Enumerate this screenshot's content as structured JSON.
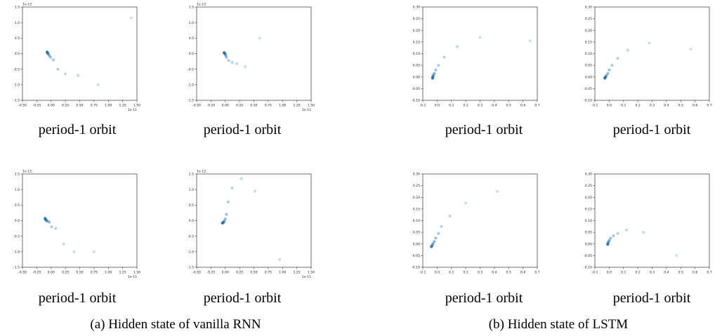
{
  "captions": {
    "a": "(a) Hidden state of vanilla RNN",
    "b": "(b) Hidden state of LSTM"
  },
  "chart_data": [
    {
      "type": "scatter",
      "group": "a",
      "caption": "period-1 orbit",
      "xlim": [
        -0.5,
        1.5
      ],
      "ylim": [
        -1.5,
        1.5
      ],
      "xticks": [
        "-0.50",
        "-0.25",
        "0.00",
        "0.25",
        "0.50",
        "0.75",
        "1.00",
        "1.25",
        "1.50"
      ],
      "yticks": [
        "-1.5",
        "-1.0",
        "-0.5",
        "0.0",
        "0.5",
        "1.0",
        "1.5"
      ],
      "xoffset": "1e-11",
      "yoffset": "1e-12",
      "x": [
        1.4,
        0.82,
        0.47,
        0.25,
        0.12,
        0.04,
        -0.01,
        -0.03,
        -0.05,
        -0.06,
        -0.065,
        -0.07
      ],
      "y": [
        1.15,
        -1.0,
        -0.7,
        -0.65,
        -0.5,
        -0.2,
        -0.12,
        -0.06,
        -0.01,
        0.02,
        0.04,
        0.05
      ]
    },
    {
      "type": "scatter",
      "group": "a",
      "caption": "period-1 orbit",
      "xlim": [
        -0.5,
        1.5
      ],
      "ylim": [
        -1.5,
        1.5
      ],
      "xticks": [
        "-0.50",
        "-0.25",
        "0.00",
        "0.25",
        "0.50",
        "0.75",
        "1.00",
        "1.25",
        "1.50"
      ],
      "yticks": [
        "-1.5",
        "-1.0",
        "-0.5",
        "0.0",
        "0.5",
        "1.0",
        "1.5"
      ],
      "xoffset": "1e-11",
      "yoffset": "1e-12",
      "x": [
        0.6,
        0.35,
        0.2,
        0.12,
        0.06,
        0.02,
        0.01,
        0.0,
        -0.01,
        -0.015,
        -0.02
      ],
      "y": [
        0.5,
        -0.42,
        -0.32,
        -0.28,
        -0.22,
        -0.12,
        -0.06,
        -0.02,
        0.01,
        0.02,
        0.03
      ]
    },
    {
      "type": "scatter",
      "group": "b",
      "caption": "period-1 orbit",
      "xlim": [
        -0.1,
        0.7
      ],
      "ylim": [
        -0.1,
        0.3
      ],
      "xticks": [
        "-0.1",
        "0.0",
        "0.1",
        "0.2",
        "0.3",
        "0.4",
        "0.5",
        "0.6",
        "0.7"
      ],
      "yticks": [
        "-0.10",
        "-0.05",
        "0.00",
        "0.05",
        "0.10",
        "0.15",
        "0.20",
        "0.25",
        "0.30"
      ],
      "xoffset": "",
      "yoffset": "",
      "x": [
        0.65,
        0.3,
        0.14,
        0.05,
        0.01,
        -0.01,
        -0.02,
        -0.025,
        -0.03,
        -0.03,
        -0.032
      ],
      "y": [
        0.155,
        0.17,
        0.13,
        0.085,
        0.05,
        0.03,
        0.015,
        0.008,
        0.002,
        -0.002,
        -0.005
      ]
    },
    {
      "type": "scatter",
      "group": "b",
      "caption": "period-1 orbit",
      "xlim": [
        -0.1,
        0.7
      ],
      "ylim": [
        -0.1,
        0.3
      ],
      "xticks": [
        "-0.1",
        "0.0",
        "0.1",
        "0.2",
        "0.3",
        "0.4",
        "0.5",
        "0.6",
        "0.7"
      ],
      "yticks": [
        "-0.10",
        "-0.05",
        "0.00",
        "0.05",
        "0.10",
        "0.15",
        "0.20",
        "0.25",
        "0.30"
      ],
      "xoffset": "",
      "yoffset": "",
      "x": [
        0.57,
        0.28,
        0.13,
        0.06,
        0.02,
        0.0,
        -0.01,
        -0.02,
        -0.025,
        -0.03,
        -0.03
      ],
      "y": [
        0.12,
        0.145,
        0.115,
        0.08,
        0.05,
        0.03,
        0.015,
        0.006,
        0.0,
        -0.003,
        -0.005
      ]
    },
    {
      "type": "scatter",
      "group": "a",
      "caption": "period-1 orbit",
      "xlim": [
        -0.5,
        1.5
      ],
      "ylim": [
        -1.5,
        1.5
      ],
      "xticks": [
        "-0.50",
        "-0.25",
        "0.00",
        "0.25",
        "0.50",
        "0.75",
        "1.00",
        "1.25",
        "1.50"
      ],
      "yticks": [
        "-1.5",
        "-1.0",
        "-0.5",
        "0.0",
        "0.5",
        "1.0",
        "1.5"
      ],
      "xoffset": "1e-11",
      "yoffset": "1e-12",
      "x": [
        0.75,
        0.4,
        0.22,
        0.08,
        0.01,
        -0.03,
        -0.06,
        -0.08,
        -0.09,
        -0.1,
        -0.105
      ],
      "y": [
        -1.0,
        -1.0,
        -0.75,
        -0.25,
        -0.2,
        -0.05,
        -0.02,
        0.0,
        0.02,
        0.05,
        0.07
      ]
    },
    {
      "type": "scatter",
      "group": "a",
      "caption": "period-1 orbit",
      "xlim": [
        -0.5,
        1.5
      ],
      "ylim": [
        -1.5,
        1.5
      ],
      "xticks": [
        "-0.50",
        "-0.25",
        "0.00",
        "0.25",
        "0.50",
        "0.75",
        "1.00",
        "1.25",
        "1.50"
      ],
      "yticks": [
        "-1.5",
        "-1.0",
        "-0.5",
        "0.0",
        "0.5",
        "1.0",
        "1.5"
      ],
      "xoffset": "1e-11",
      "yoffset": "1e-12",
      "x": [
        0.95,
        0.52,
        0.28,
        0.12,
        0.05,
        0.02,
        0.0,
        -0.02,
        -0.03,
        -0.04,
        -0.05
      ],
      "y": [
        -1.25,
        0.95,
        1.35,
        1.05,
        0.6,
        0.2,
        0.05,
        -0.02,
        -0.05,
        -0.07,
        -0.08
      ]
    },
    {
      "type": "scatter",
      "group": "b",
      "caption": "period-1 orbit",
      "xlim": [
        -0.1,
        0.7
      ],
      "ylim": [
        -0.1,
        0.3
      ],
      "xticks": [
        "-0.1",
        "0.0",
        "0.1",
        "0.2",
        "0.3",
        "0.4",
        "0.5",
        "0.6",
        "0.7"
      ],
      "yticks": [
        "-0.10",
        "-0.05",
        "0.00",
        "0.05",
        "0.10",
        "0.15",
        "0.20",
        "0.25",
        "0.30"
      ],
      "xoffset": "",
      "yoffset": "",
      "x": [
        0.42,
        0.2,
        0.09,
        0.03,
        0.01,
        -0.01,
        -0.02,
        -0.03,
        -0.035,
        -0.04
      ],
      "y": [
        0.225,
        0.175,
        0.12,
        0.075,
        0.045,
        0.025,
        0.01,
        0.0,
        -0.008,
        -0.012
      ]
    },
    {
      "type": "scatter",
      "group": "b",
      "caption": "period-1 orbit",
      "xlim": [
        -0.1,
        0.7
      ],
      "ylim": [
        -0.1,
        0.3
      ],
      "xticks": [
        "-0.1",
        "0.0",
        "0.1",
        "0.2",
        "0.3",
        "0.4",
        "0.5",
        "0.6",
        "0.7"
      ],
      "yticks": [
        "-0.10",
        "-0.05",
        "0.00",
        "0.05",
        "0.10",
        "0.15",
        "0.20",
        "0.25",
        "0.30"
      ],
      "xoffset": "",
      "yoffset": "",
      "x": [
        0.47,
        0.24,
        0.12,
        0.06,
        0.03,
        0.01,
        0.0,
        -0.005,
        -0.01,
        -0.01
      ],
      "y": [
        -0.05,
        0.05,
        0.06,
        0.045,
        0.035,
        0.025,
        0.015,
        0.008,
        0.002,
        -0.002
      ]
    }
  ]
}
